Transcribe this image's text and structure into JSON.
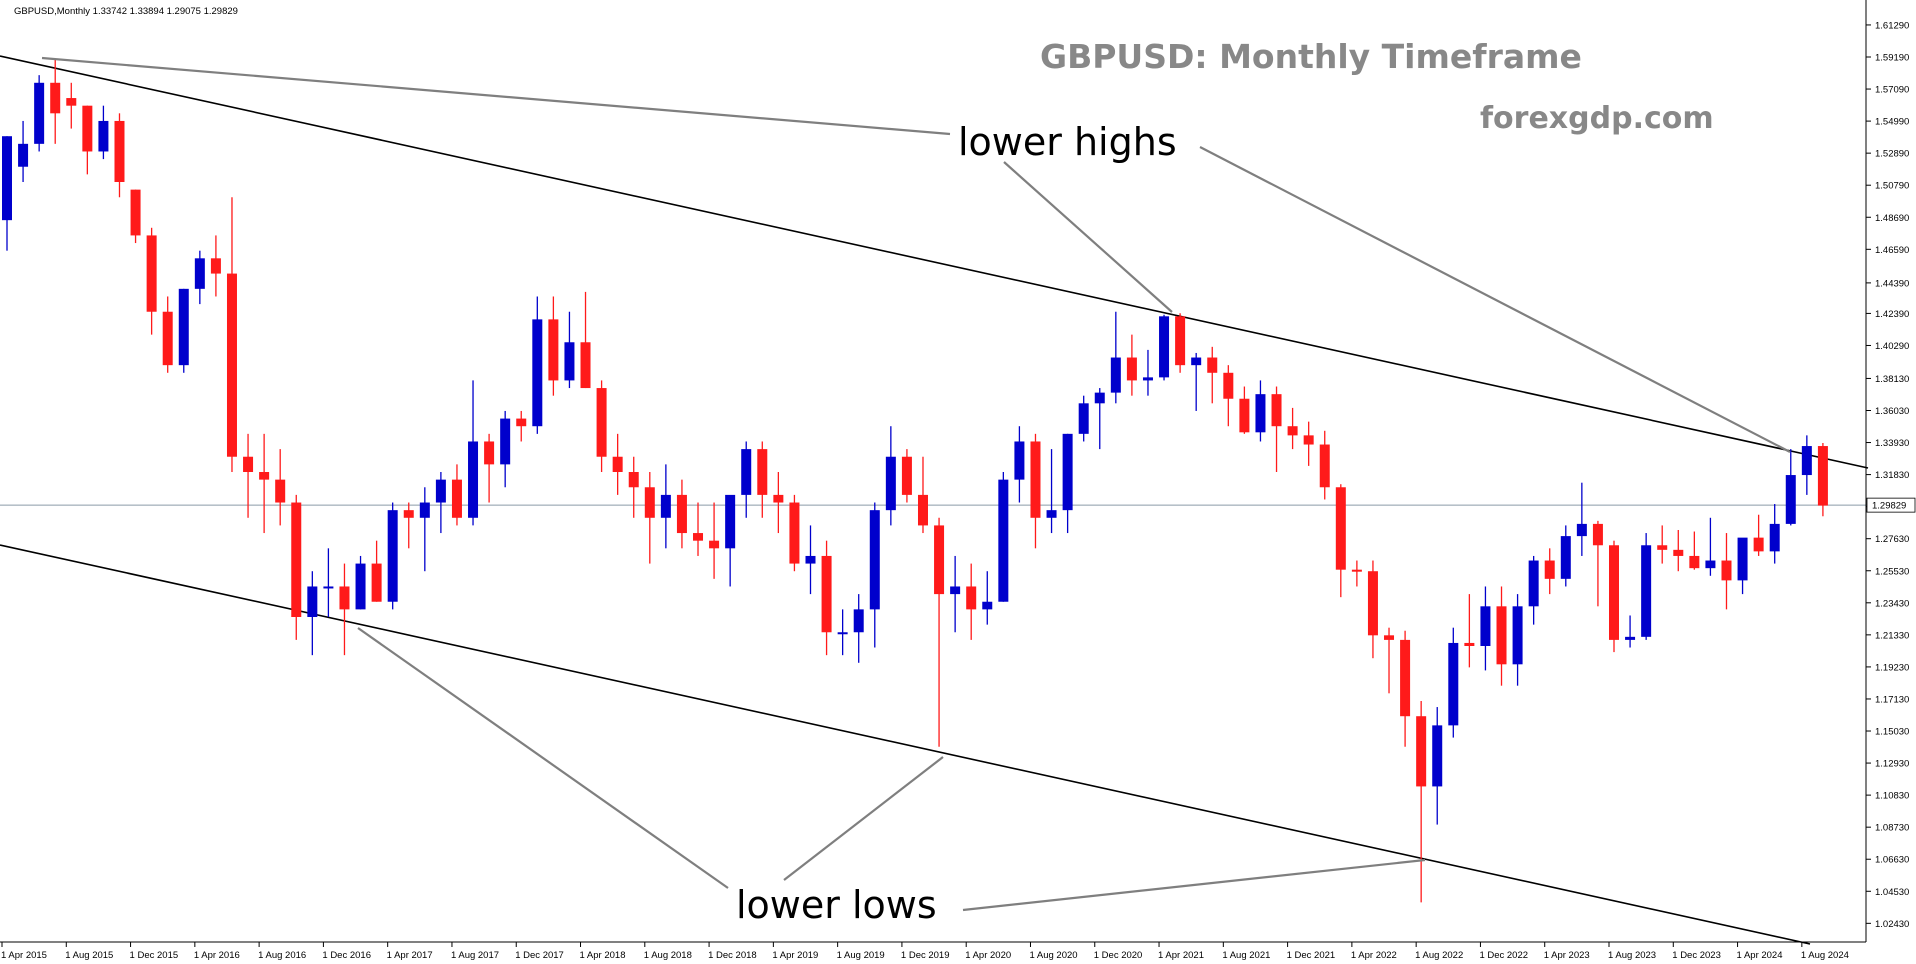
{
  "header": {
    "symbol_line": "GBPUSD,Monthly  1.33742 1.33894 1.29075 1.29829"
  },
  "headline": {
    "title": "GBPUSD: Monthly Timeframe",
    "site": "forexgdp.com"
  },
  "annotations": {
    "highs": "lower highs",
    "lows": "lower lows"
  },
  "current_price": "1.29829",
  "colors": {
    "bull": "#0000cc",
    "bear": "#ff1a1a",
    "trendline": "#000000",
    "callout_line": "#7f7f7f",
    "price_line": "#8a9aa8",
    "headline": "#888888"
  },
  "chart_data": {
    "type": "candlestick",
    "ylim": [
      1.016,
      1.624
    ],
    "y_ticks": [
      "1.61290",
      "1.59190",
      "1.57090",
      "1.54990",
      "1.52890",
      "1.50790",
      "1.48690",
      "1.46590",
      "1.44390",
      "1.42390",
      "1.40290",
      "1.38130",
      "1.36030",
      "1.33930",
      "1.31830",
      "1.29730",
      "1.27630",
      "1.25530",
      "1.23430",
      "1.21330",
      "1.19230",
      "1.17130",
      "1.15030",
      "1.12930",
      "1.10830",
      "1.08730",
      "1.06630",
      "1.04530",
      "1.02430"
    ],
    "x_ticks": [
      {
        "label": "1 Apr 2015",
        "index": 0
      },
      {
        "label": "1 Aug 2015",
        "index": 4
      },
      {
        "label": "1 Dec 2015",
        "index": 8
      },
      {
        "label": "1 Apr 2016",
        "index": 12
      },
      {
        "label": "1 Aug 2016",
        "index": 16
      },
      {
        "label": "1 Dec 2016",
        "index": 20
      },
      {
        "label": "1 Apr 2017",
        "index": 24
      },
      {
        "label": "1 Aug 2017",
        "index": 28
      },
      {
        "label": "1 Dec 2017",
        "index": 32
      },
      {
        "label": "1 Apr 2018",
        "index": 36
      },
      {
        "label": "1 Aug 2018",
        "index": 40
      },
      {
        "label": "1 Dec 2018",
        "index": 44
      },
      {
        "label": "1 Apr 2019",
        "index": 48
      },
      {
        "label": "1 Aug 2019",
        "index": 52
      },
      {
        "label": "1 Dec 2019",
        "index": 56
      },
      {
        "label": "1 Apr 2020",
        "index": 60
      },
      {
        "label": "1 Aug 2020",
        "index": 64
      },
      {
        "label": "1 Dec 2020",
        "index": 68
      },
      {
        "label": "1 Apr 2021",
        "index": 72
      },
      {
        "label": "1 Aug 2021",
        "index": 76
      },
      {
        "label": "1 Dec 2021",
        "index": 80
      },
      {
        "label": "1 Apr 2022",
        "index": 84
      },
      {
        "label": "1 Aug 2022",
        "index": 88
      },
      {
        "label": "1 Dec 2022",
        "index": 92
      },
      {
        "label": "1 Apr 2023",
        "index": 96
      },
      {
        "label": "1 Aug 2023",
        "index": 100
      },
      {
        "label": "1 Dec 2023",
        "index": 104
      },
      {
        "label": "1 Apr 2024",
        "index": 108
      },
      {
        "label": "1 Aug 2024",
        "index": 112
      }
    ],
    "candles": [
      [
        1.485,
        1.54,
        1.465,
        1.54
      ],
      [
        1.52,
        1.55,
        1.51,
        1.535
      ],
      [
        1.535,
        1.58,
        1.53,
        1.575
      ],
      [
        1.575,
        1.59,
        1.535,
        1.555
      ],
      [
        1.565,
        1.575,
        1.545,
        1.56
      ],
      [
        1.56,
        1.56,
        1.515,
        1.53
      ],
      [
        1.53,
        1.56,
        1.525,
        1.55
      ],
      [
        1.55,
        1.555,
        1.5,
        1.51
      ],
      [
        1.505,
        1.505,
        1.47,
        1.475
      ],
      [
        1.475,
        1.48,
        1.41,
        1.425
      ],
      [
        1.425,
        1.435,
        1.385,
        1.39
      ],
      [
        1.39,
        1.44,
        1.385,
        1.44
      ],
      [
        1.44,
        1.465,
        1.43,
        1.46
      ],
      [
        1.46,
        1.475,
        1.435,
        1.45
      ],
      [
        1.45,
        1.5,
        1.32,
        1.33
      ],
      [
        1.33,
        1.345,
        1.29,
        1.32
      ],
      [
        1.32,
        1.345,
        1.28,
        1.315
      ],
      [
        1.315,
        1.335,
        1.285,
        1.3
      ],
      [
        1.3,
        1.305,
        1.21,
        1.225
      ],
      [
        1.225,
        1.255,
        1.2,
        1.245
      ],
      [
        1.245,
        1.27,
        1.225,
        1.245
      ],
      [
        1.245,
        1.26,
        1.2,
        1.23
      ],
      [
        1.23,
        1.265,
        1.23,
        1.26
      ],
      [
        1.26,
        1.275,
        1.235,
        1.235
      ],
      [
        1.235,
        1.3,
        1.23,
        1.295
      ],
      [
        1.295,
        1.3,
        1.27,
        1.29
      ],
      [
        1.29,
        1.31,
        1.255,
        1.3
      ],
      [
        1.3,
        1.32,
        1.28,
        1.315
      ],
      [
        1.315,
        1.325,
        1.285,
        1.29
      ],
      [
        1.29,
        1.38,
        1.285,
        1.34
      ],
      [
        1.34,
        1.345,
        1.3,
        1.325
      ],
      [
        1.325,
        1.36,
        1.31,
        1.355
      ],
      [
        1.355,
        1.36,
        1.34,
        1.35
      ],
      [
        1.35,
        1.435,
        1.345,
        1.42
      ],
      [
        1.42,
        1.435,
        1.37,
        1.38
      ],
      [
        1.38,
        1.425,
        1.375,
        1.405
      ],
      [
        1.405,
        1.438,
        1.375,
        1.375
      ],
      [
        1.375,
        1.38,
        1.32,
        1.33
      ],
      [
        1.33,
        1.345,
        1.305,
        1.32
      ],
      [
        1.32,
        1.33,
        1.29,
        1.31
      ],
      [
        1.31,
        1.32,
        1.26,
        1.29
      ],
      [
        1.29,
        1.325,
        1.27,
        1.305
      ],
      [
        1.305,
        1.315,
        1.27,
        1.28
      ],
      [
        1.28,
        1.3,
        1.265,
        1.275
      ],
      [
        1.275,
        1.3,
        1.25,
        1.27
      ],
      [
        1.27,
        1.3,
        1.245,
        1.305
      ],
      [
        1.305,
        1.34,
        1.29,
        1.335
      ],
      [
        1.335,
        1.34,
        1.29,
        1.305
      ],
      [
        1.305,
        1.32,
        1.28,
        1.3
      ],
      [
        1.3,
        1.305,
        1.255,
        1.26
      ],
      [
        1.26,
        1.285,
        1.24,
        1.265
      ],
      [
        1.265,
        1.275,
        1.2,
        1.215
      ],
      [
        1.215,
        1.23,
        1.2,
        1.215
      ],
      [
        1.215,
        1.24,
        1.195,
        1.23
      ],
      [
        1.23,
        1.3,
        1.205,
        1.295
      ],
      [
        1.295,
        1.35,
        1.285,
        1.33
      ],
      [
        1.33,
        1.335,
        1.3,
        1.305
      ],
      [
        1.305,
        1.33,
        1.28,
        1.285
      ],
      [
        1.285,
        1.29,
        1.14,
        1.24
      ],
      [
        1.24,
        1.265,
        1.215,
        1.245
      ],
      [
        1.245,
        1.26,
        1.21,
        1.23
      ],
      [
        1.23,
        1.255,
        1.22,
        1.235
      ],
      [
        1.235,
        1.32,
        1.235,
        1.315
      ],
      [
        1.315,
        1.35,
        1.3,
        1.34
      ],
      [
        1.34,
        1.345,
        1.27,
        1.29
      ],
      [
        1.29,
        1.335,
        1.28,
        1.295
      ],
      [
        1.295,
        1.345,
        1.28,
        1.345
      ],
      [
        1.345,
        1.37,
        1.34,
        1.365
      ],
      [
        1.365,
        1.375,
        1.335,
        1.372
      ],
      [
        1.372,
        1.425,
        1.365,
        1.395
      ],
      [
        1.395,
        1.41,
        1.37,
        1.38
      ],
      [
        1.38,
        1.4,
        1.37,
        1.382
      ],
      [
        1.382,
        1.423,
        1.38,
        1.422
      ],
      [
        1.422,
        1.424,
        1.385,
        1.39
      ],
      [
        1.39,
        1.398,
        1.36,
        1.395
      ],
      [
        1.395,
        1.402,
        1.365,
        1.385
      ],
      [
        1.385,
        1.39,
        1.35,
        1.368
      ],
      [
        1.368,
        1.376,
        1.345,
        1.346
      ],
      [
        1.346,
        1.38,
        1.34,
        1.371
      ],
      [
        1.371,
        1.376,
        1.32,
        1.35
      ],
      [
        1.35,
        1.362,
        1.335,
        1.344
      ],
      [
        1.344,
        1.353,
        1.324,
        1.338
      ],
      [
        1.338,
        1.347,
        1.302,
        1.31
      ],
      [
        1.31,
        1.312,
        1.238,
        1.256
      ],
      [
        1.256,
        1.262,
        1.245,
        1.255
      ],
      [
        1.255,
        1.262,
        1.198,
        1.213
      ],
      [
        1.213,
        1.218,
        1.175,
        1.21
      ],
      [
        1.21,
        1.216,
        1.14,
        1.16
      ],
      [
        1.16,
        1.17,
        1.038,
        1.114
      ],
      [
        1.114,
        1.166,
        1.089,
        1.154
      ],
      [
        1.154,
        1.218,
        1.146,
        1.208
      ],
      [
        1.208,
        1.24,
        1.192,
        1.206
      ],
      [
        1.206,
        1.245,
        1.19,
        1.232
      ],
      [
        1.232,
        1.245,
        1.18,
        1.194
      ],
      [
        1.194,
        1.24,
        1.18,
        1.232
      ],
      [
        1.232,
        1.265,
        1.22,
        1.262
      ],
      [
        1.262,
        1.27,
        1.24,
        1.25
      ],
      [
        1.25,
        1.285,
        1.245,
        1.278
      ],
      [
        1.278,
        1.313,
        1.265,
        1.286
      ],
      [
        1.286,
        1.288,
        1.232,
        1.272
      ],
      [
        1.272,
        1.275,
        1.202,
        1.21
      ],
      [
        1.21,
        1.226,
        1.205,
        1.212
      ],
      [
        1.212,
        1.28,
        1.21,
        1.272
      ],
      [
        1.272,
        1.285,
        1.26,
        1.269
      ],
      [
        1.269,
        1.282,
        1.255,
        1.265
      ],
      [
        1.265,
        1.281,
        1.256,
        1.257
      ],
      [
        1.257,
        1.29,
        1.252,
        1.262
      ],
      [
        1.262,
        1.28,
        1.23,
        1.249
      ],
      [
        1.249,
        1.275,
        1.24,
        1.277
      ],
      [
        1.277,
        1.292,
        1.265,
        1.268
      ],
      [
        1.268,
        1.299,
        1.26,
        1.286
      ],
      [
        1.286,
        1.335,
        1.285,
        1.318
      ],
      [
        1.318,
        1.344,
        1.305,
        1.337
      ],
      [
        1.337,
        1.339,
        1.291,
        1.298
      ]
    ]
  }
}
